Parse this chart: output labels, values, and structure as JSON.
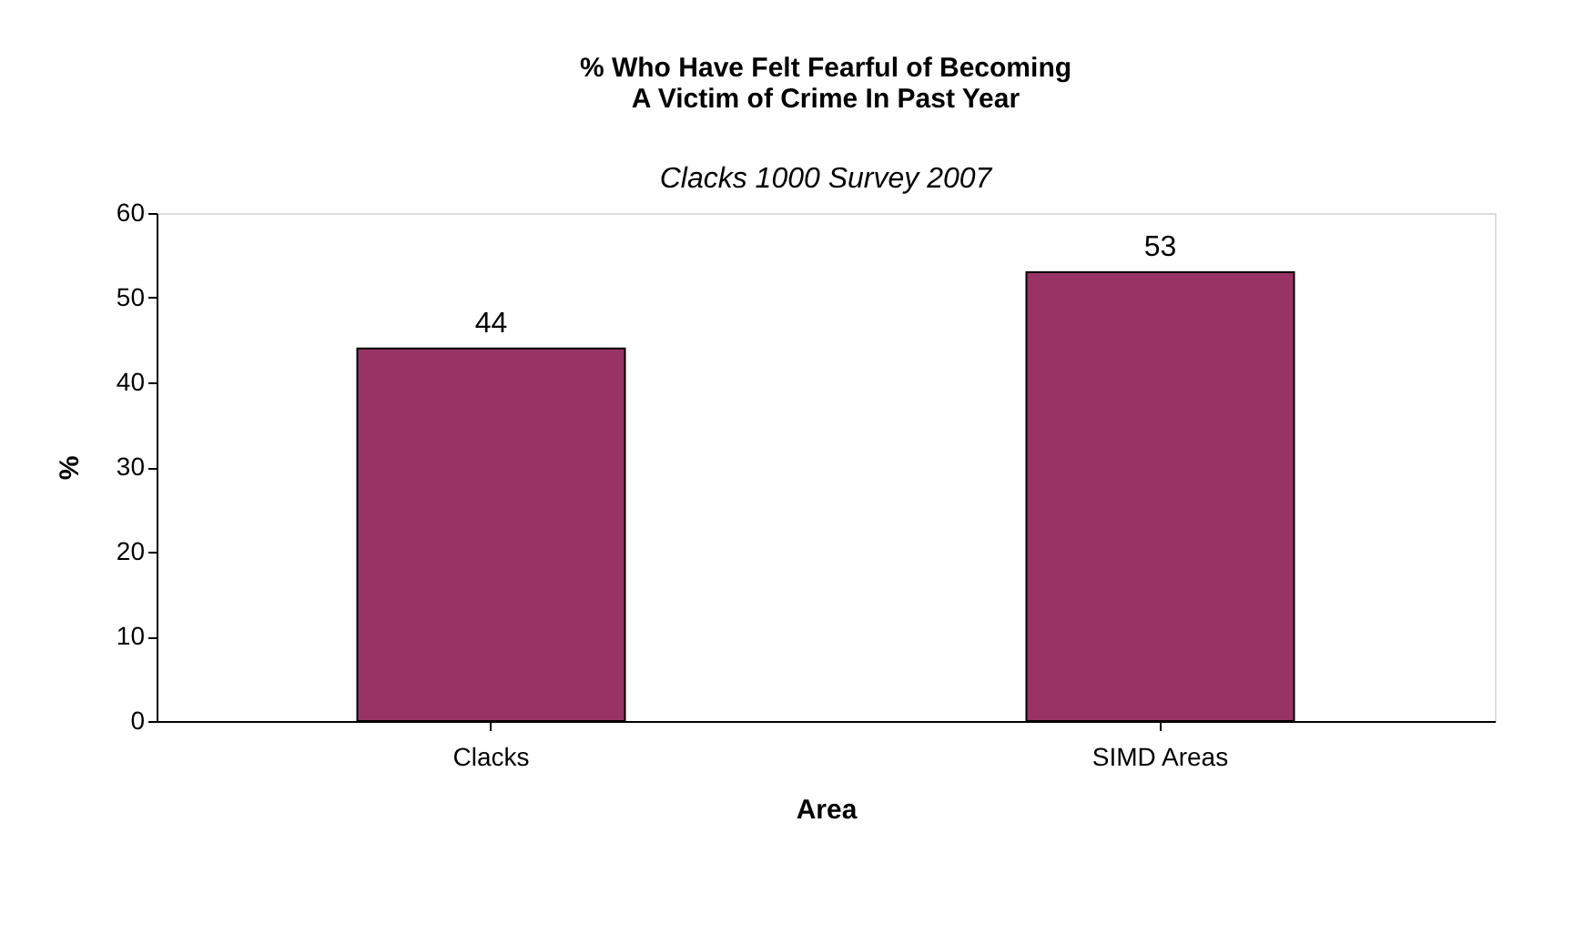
{
  "chart_data": {
    "type": "bar",
    "title": [
      "% Who Have Felt Fearful of Becoming",
      "A Victim of Crime In Past Year"
    ],
    "subtitle": "Clacks 1000 Survey 2007",
    "xlabel": "Area",
    "ylabel": "%",
    "categories": [
      "Clacks",
      "SIMD Areas"
    ],
    "values": [
      44,
      53
    ],
    "color": "#993366",
    "ylim": [
      0,
      60
    ],
    "yticks": [
      0,
      10,
      20,
      30,
      40,
      50,
      60
    ],
    "grid": false,
    "data_labels": true
  }
}
